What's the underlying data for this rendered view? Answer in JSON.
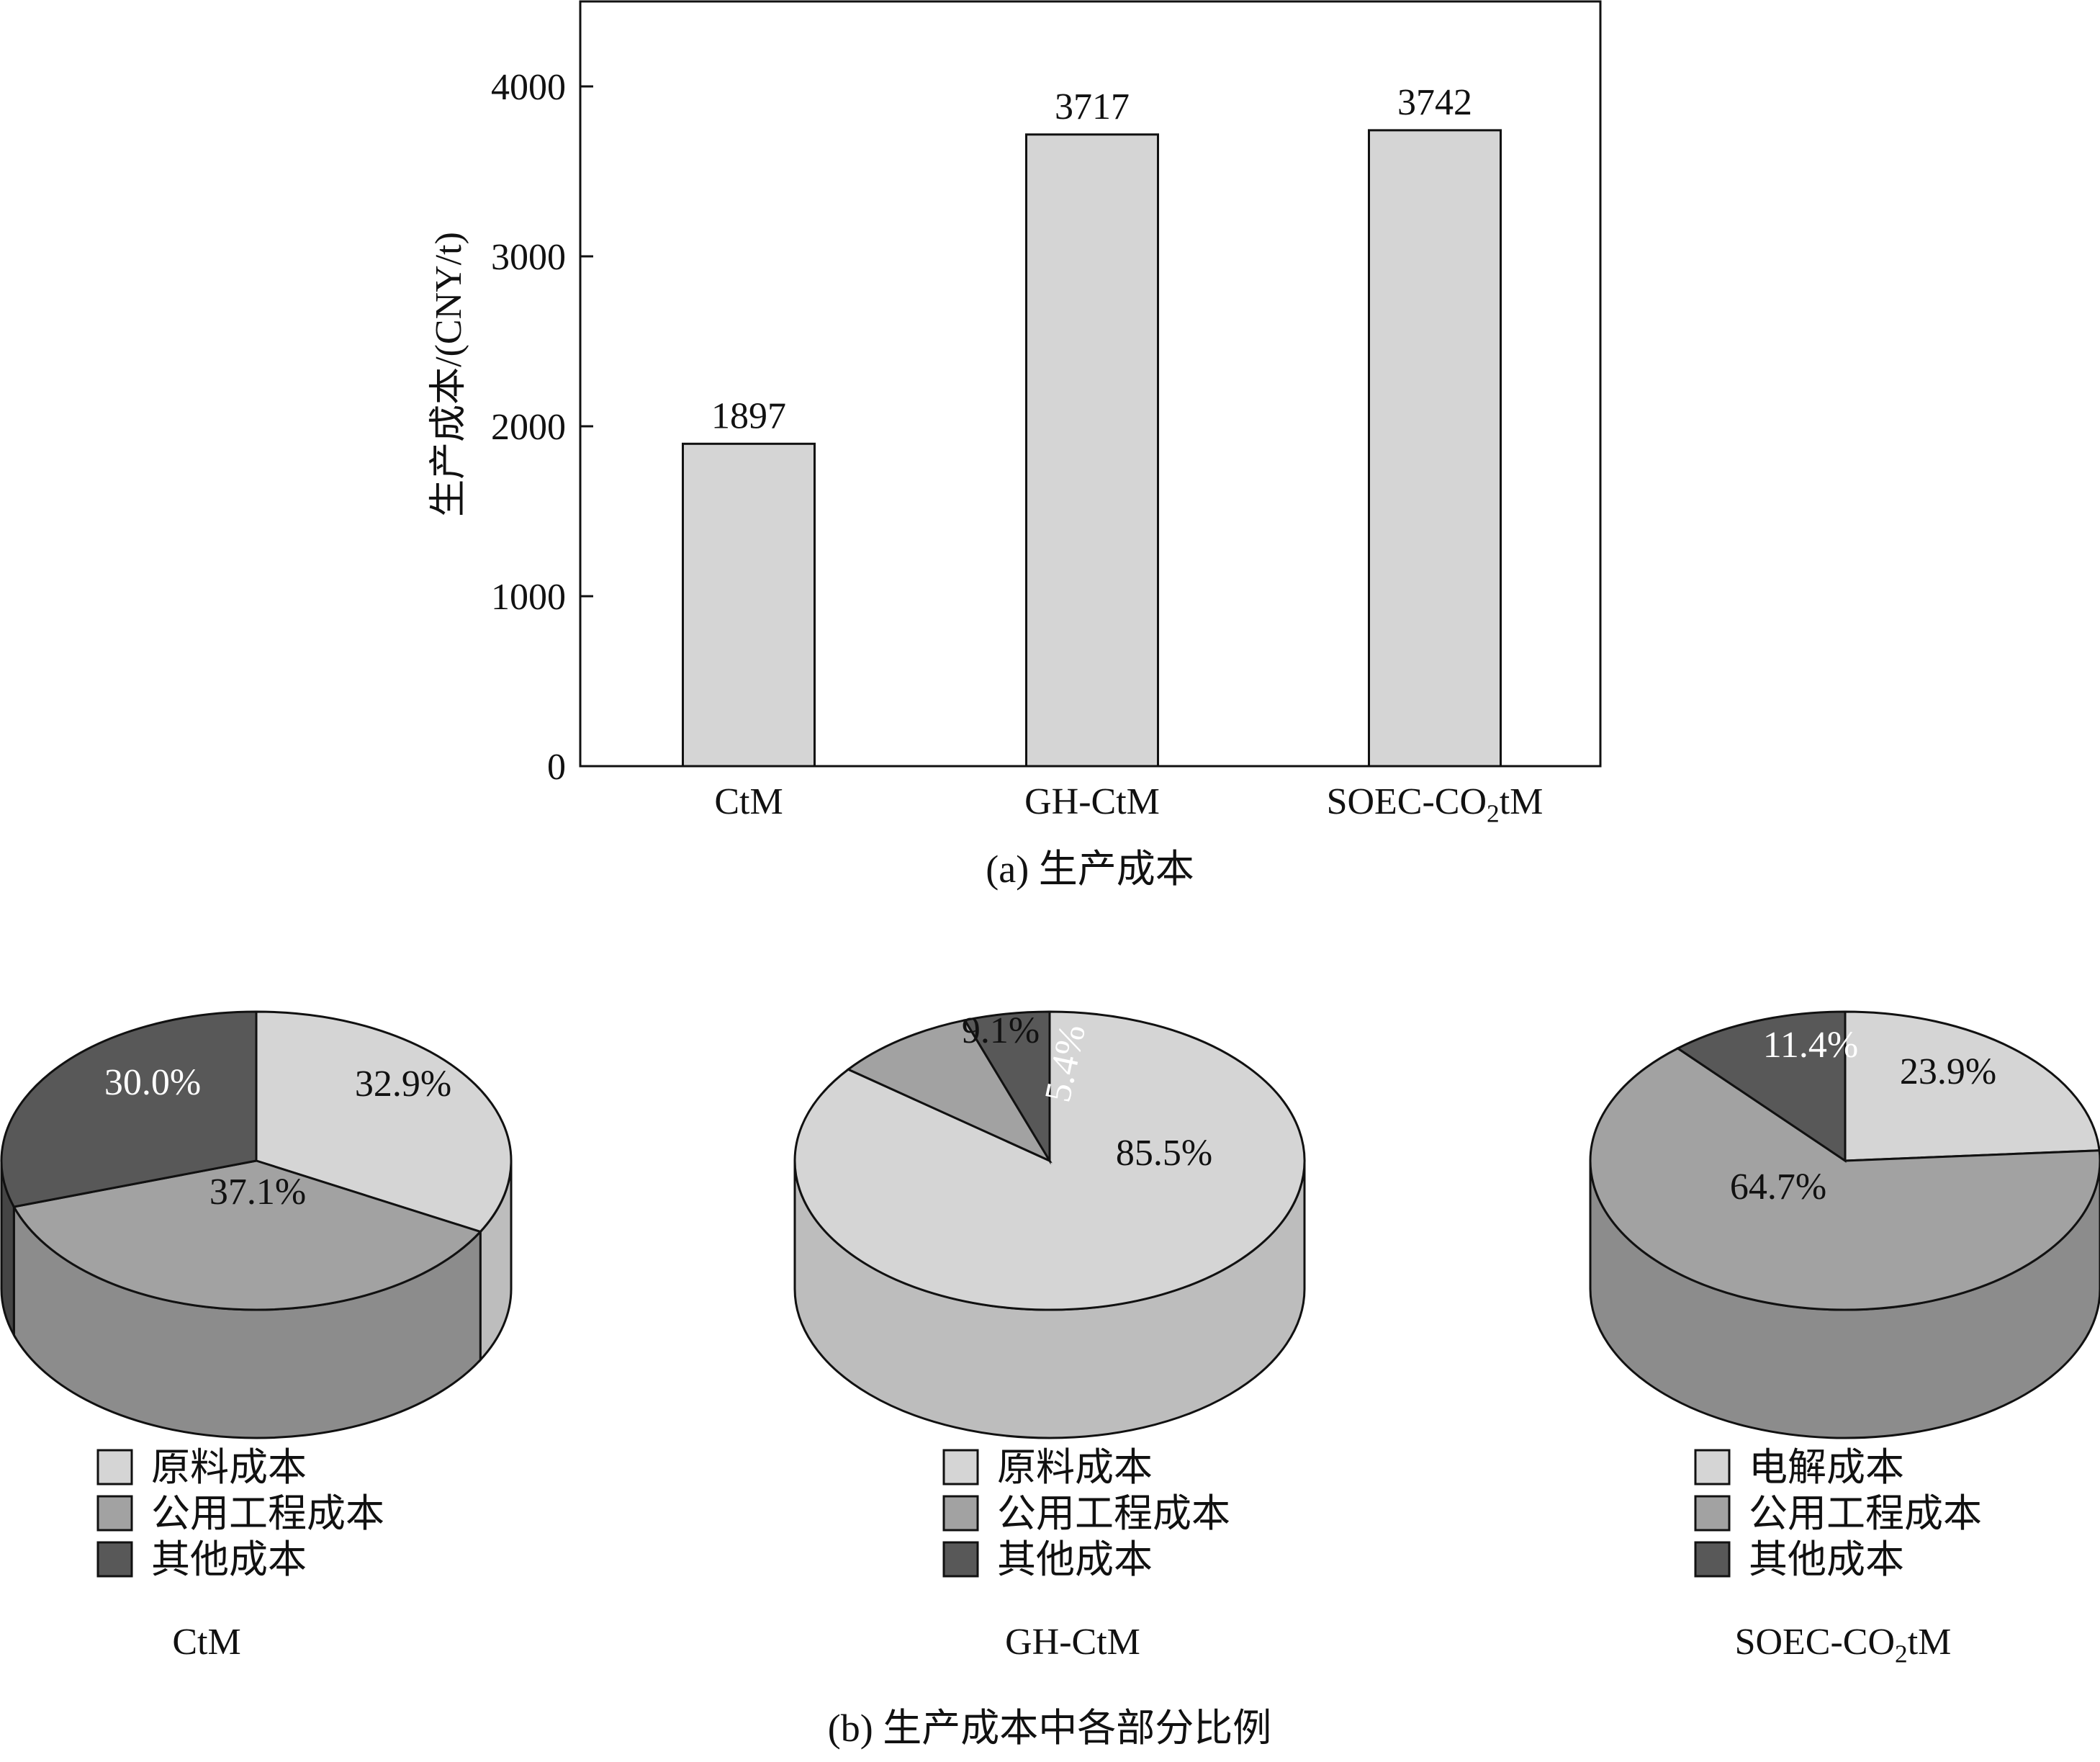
{
  "palette": {
    "light": "#d5d5d5",
    "mid": "#a2a2a2",
    "dark": "#585858",
    "stroke": "#111111"
  },
  "chart_data": [
    {
      "type": "bar",
      "title": "(a) 生产成本",
      "ylabel": "生产成本/(CNY/t)",
      "ylim": [
        0,
        4500
      ],
      "yticks": [
        0,
        1000,
        2000,
        3000,
        4000
      ],
      "categories": [
        {
          "base": "CtM",
          "sub": "",
          "tail": ""
        },
        {
          "base": "GH-CtM",
          "sub": "",
          "tail": ""
        },
        {
          "base": "SOEC-CO",
          "sub": "2",
          "tail": "tM"
        }
      ],
      "values": [
        1897,
        3717,
        3742
      ],
      "value_labels": [
        "1897",
        "3717",
        "3742"
      ]
    },
    {
      "type": "pie",
      "title": "(b) 生产成本中各部分比例",
      "pies": [
        {
          "name": {
            "base": "CtM",
            "sub": "",
            "tail": ""
          },
          "slices": [
            {
              "label": "原料成本",
              "value": 32.9,
              "text": "32.9%",
              "shade": "light"
            },
            {
              "label": "公用工程成本",
              "value": 37.1,
              "text": "37.1%",
              "shade": "mid"
            },
            {
              "label": "其他成本",
              "value": 30.0,
              "text": "30.0%",
              "shade": "dark"
            }
          ]
        },
        {
          "name": {
            "base": "GH-CtM",
            "sub": "",
            "tail": ""
          },
          "slices": [
            {
              "label": "原料成本",
              "value": 85.5,
              "text": "85.5%",
              "shade": "light"
            },
            {
              "label": "公用工程成本",
              "value": 9.1,
              "text": "9.1%",
              "shade": "mid"
            },
            {
              "label": "其他成本",
              "value": 5.4,
              "text": "5.4%",
              "shade": "dark"
            }
          ]
        },
        {
          "name": {
            "base": "SOEC-CO",
            "sub": "2",
            "tail": "tM"
          },
          "slices": [
            {
              "label": "电解成本",
              "value": 23.9,
              "text": "23.9%",
              "shade": "light"
            },
            {
              "label": "公用工程成本",
              "value": 64.7,
              "text": "64.7%",
              "shade": "mid"
            },
            {
              "label": "其他成本",
              "value": 11.4,
              "text": "11.4%",
              "shade": "dark"
            }
          ]
        }
      ]
    }
  ]
}
